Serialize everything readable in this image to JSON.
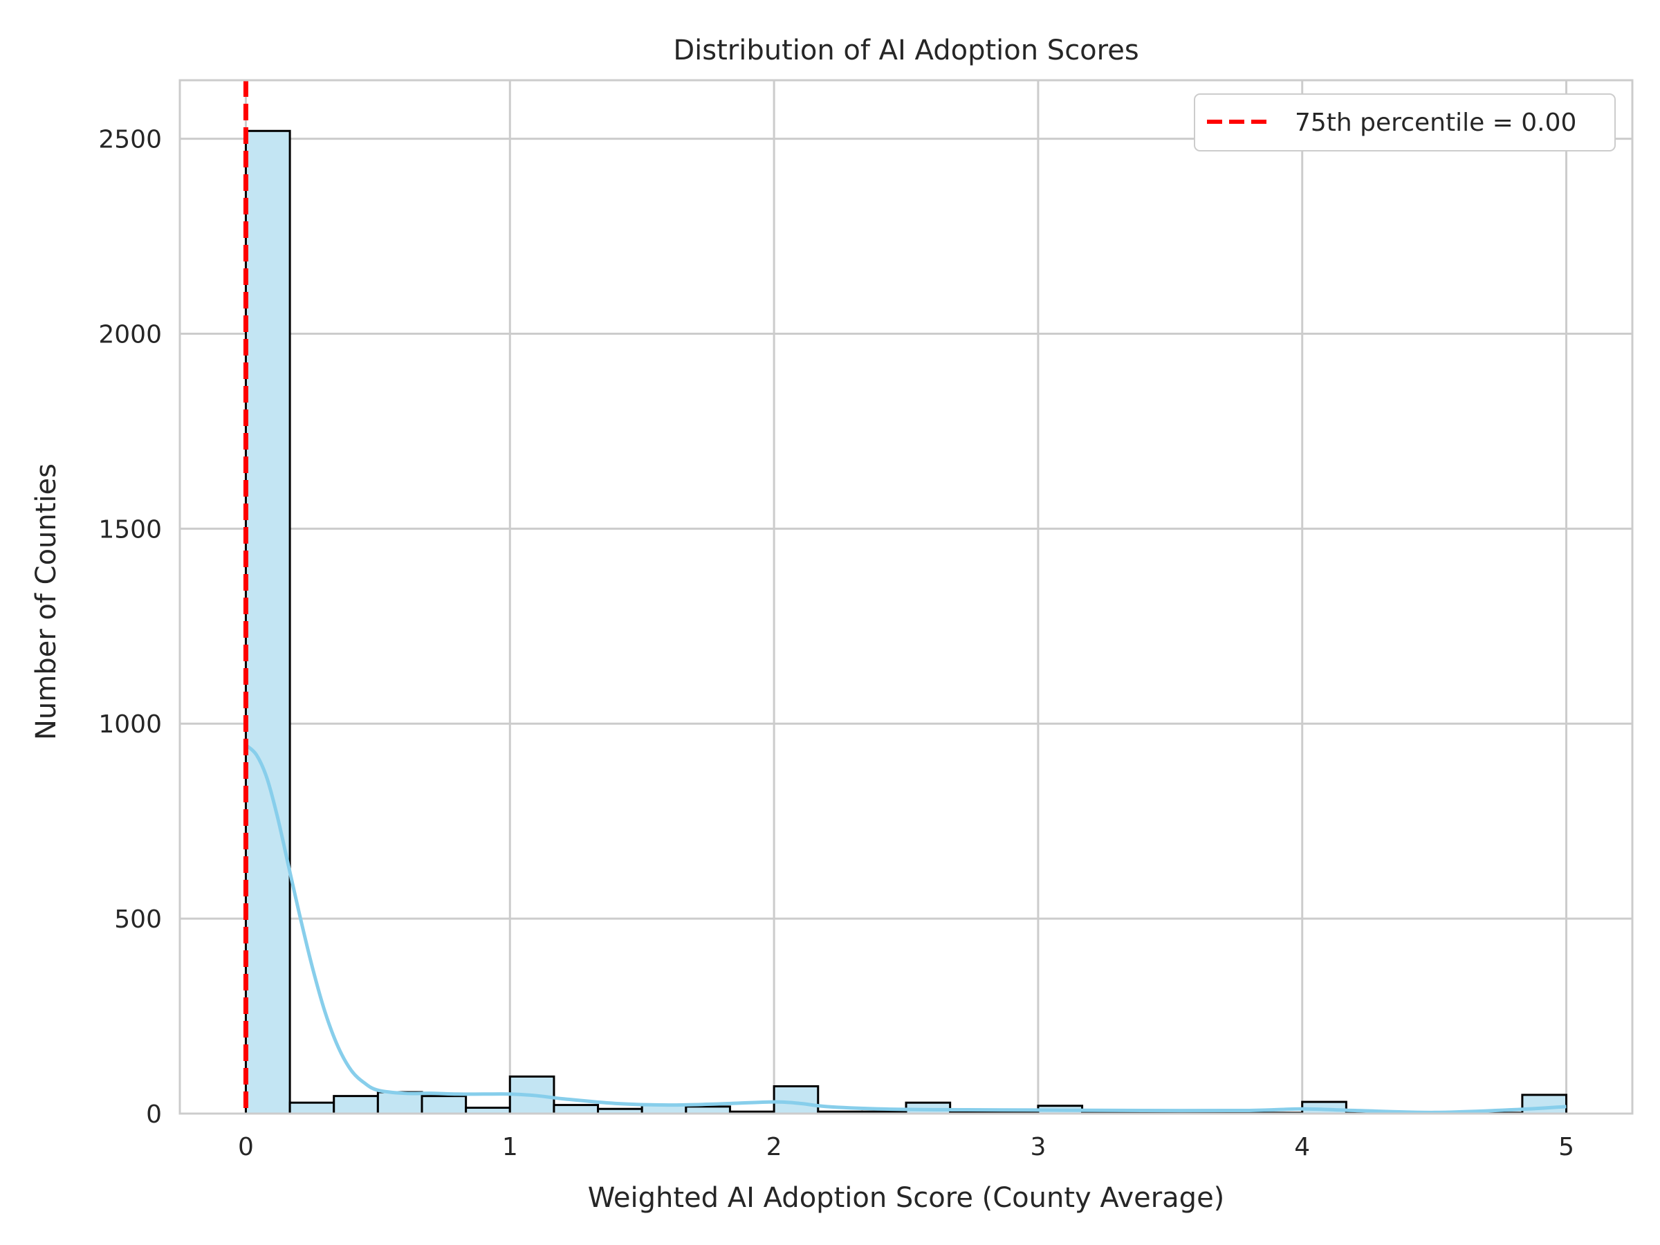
{
  "chart_data": {
    "type": "histogram",
    "title": "Distribution of AI Adoption Scores",
    "xlabel": "Weighted AI Adoption Score (County Average)",
    "ylabel": "Number of Counties",
    "xlim": [
      -0.25,
      5.25
    ],
    "ylim": [
      0,
      2650
    ],
    "xticks": [
      0,
      1,
      2,
      3,
      4,
      5
    ],
    "yticks": [
      0,
      500,
      1000,
      1500,
      2000,
      2500
    ],
    "grid": true,
    "bin_width": 0.1667,
    "bins": [
      {
        "x0": 0.0,
        "x1": 0.1667,
        "count": 2520
      },
      {
        "x0": 0.1667,
        "x1": 0.3333,
        "count": 28
      },
      {
        "x0": 0.3333,
        "x1": 0.5,
        "count": 45
      },
      {
        "x0": 0.5,
        "x1": 0.6667,
        "count": 55
      },
      {
        "x0": 0.6667,
        "x1": 0.8333,
        "count": 45
      },
      {
        "x0": 0.8333,
        "x1": 1.0,
        "count": 15
      },
      {
        "x0": 1.0,
        "x1": 1.1667,
        "count": 95
      },
      {
        "x0": 1.1667,
        "x1": 1.3333,
        "count": 22
      },
      {
        "x0": 1.3333,
        "x1": 1.5,
        "count": 12
      },
      {
        "x0": 1.5,
        "x1": 1.6667,
        "count": 22
      },
      {
        "x0": 1.6667,
        "x1": 1.8333,
        "count": 18
      },
      {
        "x0": 1.8333,
        "x1": 2.0,
        "count": 5
      },
      {
        "x0": 2.0,
        "x1": 2.1667,
        "count": 70
      },
      {
        "x0": 2.1667,
        "x1": 2.3333,
        "count": 5
      },
      {
        "x0": 2.3333,
        "x1": 2.5,
        "count": 5
      },
      {
        "x0": 2.5,
        "x1": 2.6667,
        "count": 28
      },
      {
        "x0": 2.6667,
        "x1": 2.8333,
        "count": 3
      },
      {
        "x0": 2.8333,
        "x1": 3.0,
        "count": 3
      },
      {
        "x0": 3.0,
        "x1": 3.1667,
        "count": 20
      },
      {
        "x0": 3.1667,
        "x1": 3.3333,
        "count": 2
      },
      {
        "x0": 3.3333,
        "x1": 3.5,
        "count": 5
      },
      {
        "x0": 3.5,
        "x1": 3.6667,
        "count": 2
      },
      {
        "x0": 3.6667,
        "x1": 3.8333,
        "count": 2
      },
      {
        "x0": 3.8333,
        "x1": 4.0,
        "count": 2
      },
      {
        "x0": 4.0,
        "x1": 4.1667,
        "count": 30
      },
      {
        "x0": 4.1667,
        "x1": 4.3333,
        "count": 2
      },
      {
        "x0": 4.3333,
        "x1": 4.5,
        "count": 2
      },
      {
        "x0": 4.5,
        "x1": 4.6667,
        "count": 2
      },
      {
        "x0": 4.6667,
        "x1": 4.8333,
        "count": 2
      },
      {
        "x0": 4.8333,
        "x1": 5.0,
        "count": 48
      }
    ],
    "kde": {
      "x": [
        0.0,
        0.04,
        0.08,
        0.12,
        0.16,
        0.2,
        0.25,
        0.3,
        0.35,
        0.4,
        0.45,
        0.5,
        0.6,
        0.7,
        0.8,
        0.9,
        1.0,
        1.1,
        1.2,
        1.4,
        1.6,
        1.8,
        2.0,
        2.1,
        2.2,
        2.4,
        2.6,
        3.0,
        3.4,
        3.8,
        4.0,
        4.2,
        4.5,
        4.8,
        5.0
      ],
      "y": [
        945,
        920,
        860,
        760,
        640,
        520,
        380,
        260,
        170,
        110,
        78,
        60,
        52,
        52,
        50,
        50,
        50,
        46,
        38,
        26,
        22,
        25,
        30,
        26,
        18,
        12,
        10,
        9,
        8,
        8,
        12,
        8,
        3,
        10,
        18
      ]
    },
    "reference_line": {
      "x": 0.0,
      "label": "75th percentile = 0.00",
      "color": "#ff0000",
      "style": "dashed"
    },
    "legend": {
      "position": "top-right",
      "entries": [
        "75th percentile = 0.00"
      ]
    },
    "colors": {
      "bar_fill": "#c3e5f3",
      "bar_edge": "#000000",
      "kde_line": "#87ceeb",
      "grid": "#cccccc",
      "frame": "#cccccc",
      "ref_line": "#ff0000"
    }
  }
}
